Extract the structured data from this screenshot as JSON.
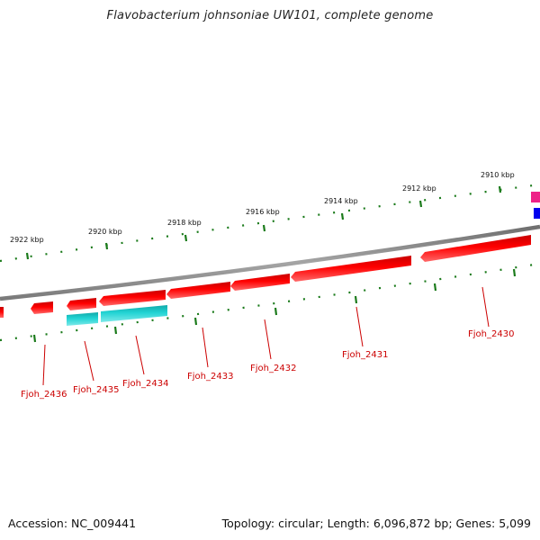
{
  "title": "Flavobacterium johnsoniae UW101, complete genome",
  "footer": {
    "accession": "Accession: NC_009441",
    "topology": "Topology: circular; Length: 6,096,872 bp; Genes: 5,099"
  },
  "scale_labels": [
    "2922 kbp",
    "2920 kbp",
    "2918 kbp",
    "2916 kbp",
    "2914 kbp",
    "2912 kbp",
    "2910 kbp"
  ],
  "gene_labels": [
    "Fjoh_2436",
    "Fjoh_2435",
    "Fjoh_2434",
    "Fjoh_2433",
    "Fjoh_2432",
    "Fjoh_2431",
    "Fjoh_2430"
  ],
  "colors": {
    "forward_strand": "#ee0000",
    "reverse_strand": "#22cccc",
    "backbone": "#8a8a8a",
    "ticks": "#1a7a1a",
    "label": "#cc0000",
    "edge_pink": "#ee2288",
    "edge_blue": "#0000ee"
  }
}
